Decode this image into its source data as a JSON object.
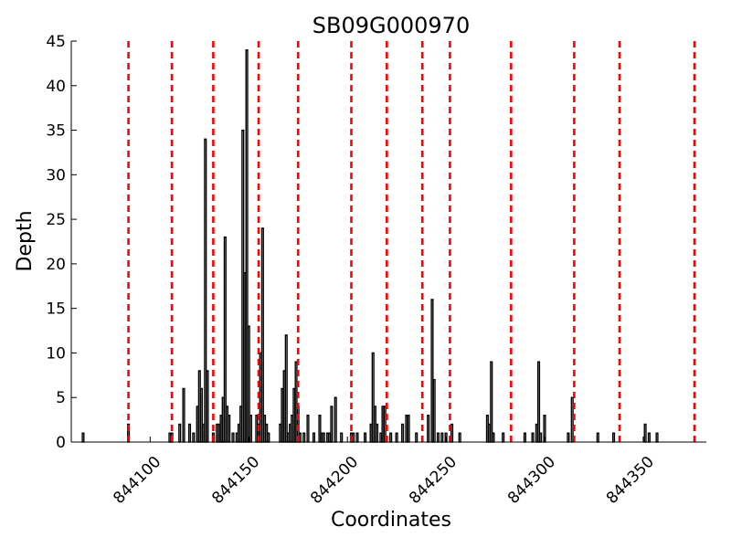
{
  "chart_data": {
    "type": "bar",
    "title": "SB09G000970",
    "xlabel": "Coordinates",
    "ylabel": "Depth",
    "xlim": [
      844060,
      844382
    ],
    "ylim": [
      0,
      45
    ],
    "x_ticks": [
      844100,
      844150,
      844200,
      844250,
      844300,
      844350
    ],
    "y_ticks": [
      0,
      5,
      10,
      15,
      20,
      25,
      30,
      35,
      40,
      45
    ],
    "x_tick_labels": [
      "844100",
      "844150",
      "844200",
      "844250",
      "844300",
      "844350"
    ],
    "y_tick_labels": [
      "0",
      "5",
      "10",
      "15",
      "20",
      "25",
      "30",
      "35",
      "40",
      "45"
    ],
    "grid": false,
    "legend": "none",
    "series": [
      {
        "color": "#000000",
        "points": [
          [
            844066,
            1
          ],
          [
            844089,
            2
          ],
          [
            844110,
            1
          ],
          [
            844111,
            1
          ],
          [
            844115,
            2
          ],
          [
            844117,
            6
          ],
          [
            844120,
            2
          ],
          [
            844122,
            1
          ],
          [
            844124,
            4
          ],
          [
            844125,
            8
          ],
          [
            844126,
            6
          ],
          [
            844127,
            2
          ],
          [
            844128,
            34
          ],
          [
            844129,
            8
          ],
          [
            844132,
            1
          ],
          [
            844134,
            2
          ],
          [
            844135,
            2
          ],
          [
            844136,
            3
          ],
          [
            844137,
            5
          ],
          [
            844138,
            23
          ],
          [
            844139,
            4
          ],
          [
            844140,
            3
          ],
          [
            844142,
            1
          ],
          [
            844144,
            1
          ],
          [
            844145,
            2
          ],
          [
            844146,
            4
          ],
          [
            844147,
            35
          ],
          [
            844148,
            19
          ],
          [
            844149,
            44
          ],
          [
            844150,
            13
          ],
          [
            844151,
            3
          ],
          [
            844154,
            3
          ],
          [
            844155,
            2
          ],
          [
            844156,
            10
          ],
          [
            844157,
            24
          ],
          [
            844158,
            3
          ],
          [
            844159,
            2
          ],
          [
            844160,
            1
          ],
          [
            844166,
            2
          ],
          [
            844167,
            6
          ],
          [
            844168,
            8
          ],
          [
            844169,
            12
          ],
          [
            844170,
            1
          ],
          [
            844171,
            2
          ],
          [
            844172,
            3
          ],
          [
            844173,
            6
          ],
          [
            844174,
            9
          ],
          [
            844175,
            4
          ],
          [
            844176,
            1
          ],
          [
            844178,
            1
          ],
          [
            844180,
            3
          ],
          [
            844183,
            1
          ],
          [
            844186,
            3
          ],
          [
            844187,
            1
          ],
          [
            844188,
            1
          ],
          [
            844190,
            1
          ],
          [
            844191,
            1
          ],
          [
            844192,
            4
          ],
          [
            844194,
            5
          ],
          [
            844197,
            1
          ],
          [
            844202,
            1
          ],
          [
            844203,
            1
          ],
          [
            844205,
            1
          ],
          [
            844209,
            1
          ],
          [
            844212,
            2
          ],
          [
            844213,
            10
          ],
          [
            844214,
            4
          ],
          [
            844215,
            2
          ],
          [
            844217,
            1
          ],
          [
            844218,
            4
          ],
          [
            844219,
            4
          ],
          [
            844222,
            1
          ],
          [
            844225,
            1
          ],
          [
            844228,
            2
          ],
          [
            844230,
            3
          ],
          [
            844231,
            3
          ],
          [
            844235,
            1
          ],
          [
            844241,
            3
          ],
          [
            844243,
            16
          ],
          [
            844244,
            7
          ],
          [
            844246,
            1
          ],
          [
            844248,
            1
          ],
          [
            844250,
            1
          ],
          [
            844253,
            2
          ],
          [
            844257,
            1
          ],
          [
            844271,
            3
          ],
          [
            844272,
            2
          ],
          [
            844273,
            9
          ],
          [
            844274,
            1
          ],
          [
            844279,
            1
          ],
          [
            844290,
            1
          ],
          [
            844294,
            1
          ],
          [
            844296,
            2
          ],
          [
            844297,
            9
          ],
          [
            844298,
            1
          ],
          [
            844300,
            3
          ],
          [
            844312,
            1
          ],
          [
            844314,
            5
          ],
          [
            844327,
            1
          ],
          [
            844335,
            1
          ],
          [
            844351,
            2
          ],
          [
            844353,
            1
          ],
          [
            844357,
            1
          ]
        ]
      }
    ],
    "vlines": {
      "color": "#ff0000",
      "style": "dashed",
      "x": [
        844089,
        844111,
        844132,
        844155,
        844175,
        844202,
        844220,
        844238,
        844252,
        844283,
        844315,
        844338,
        844376
      ]
    }
  }
}
